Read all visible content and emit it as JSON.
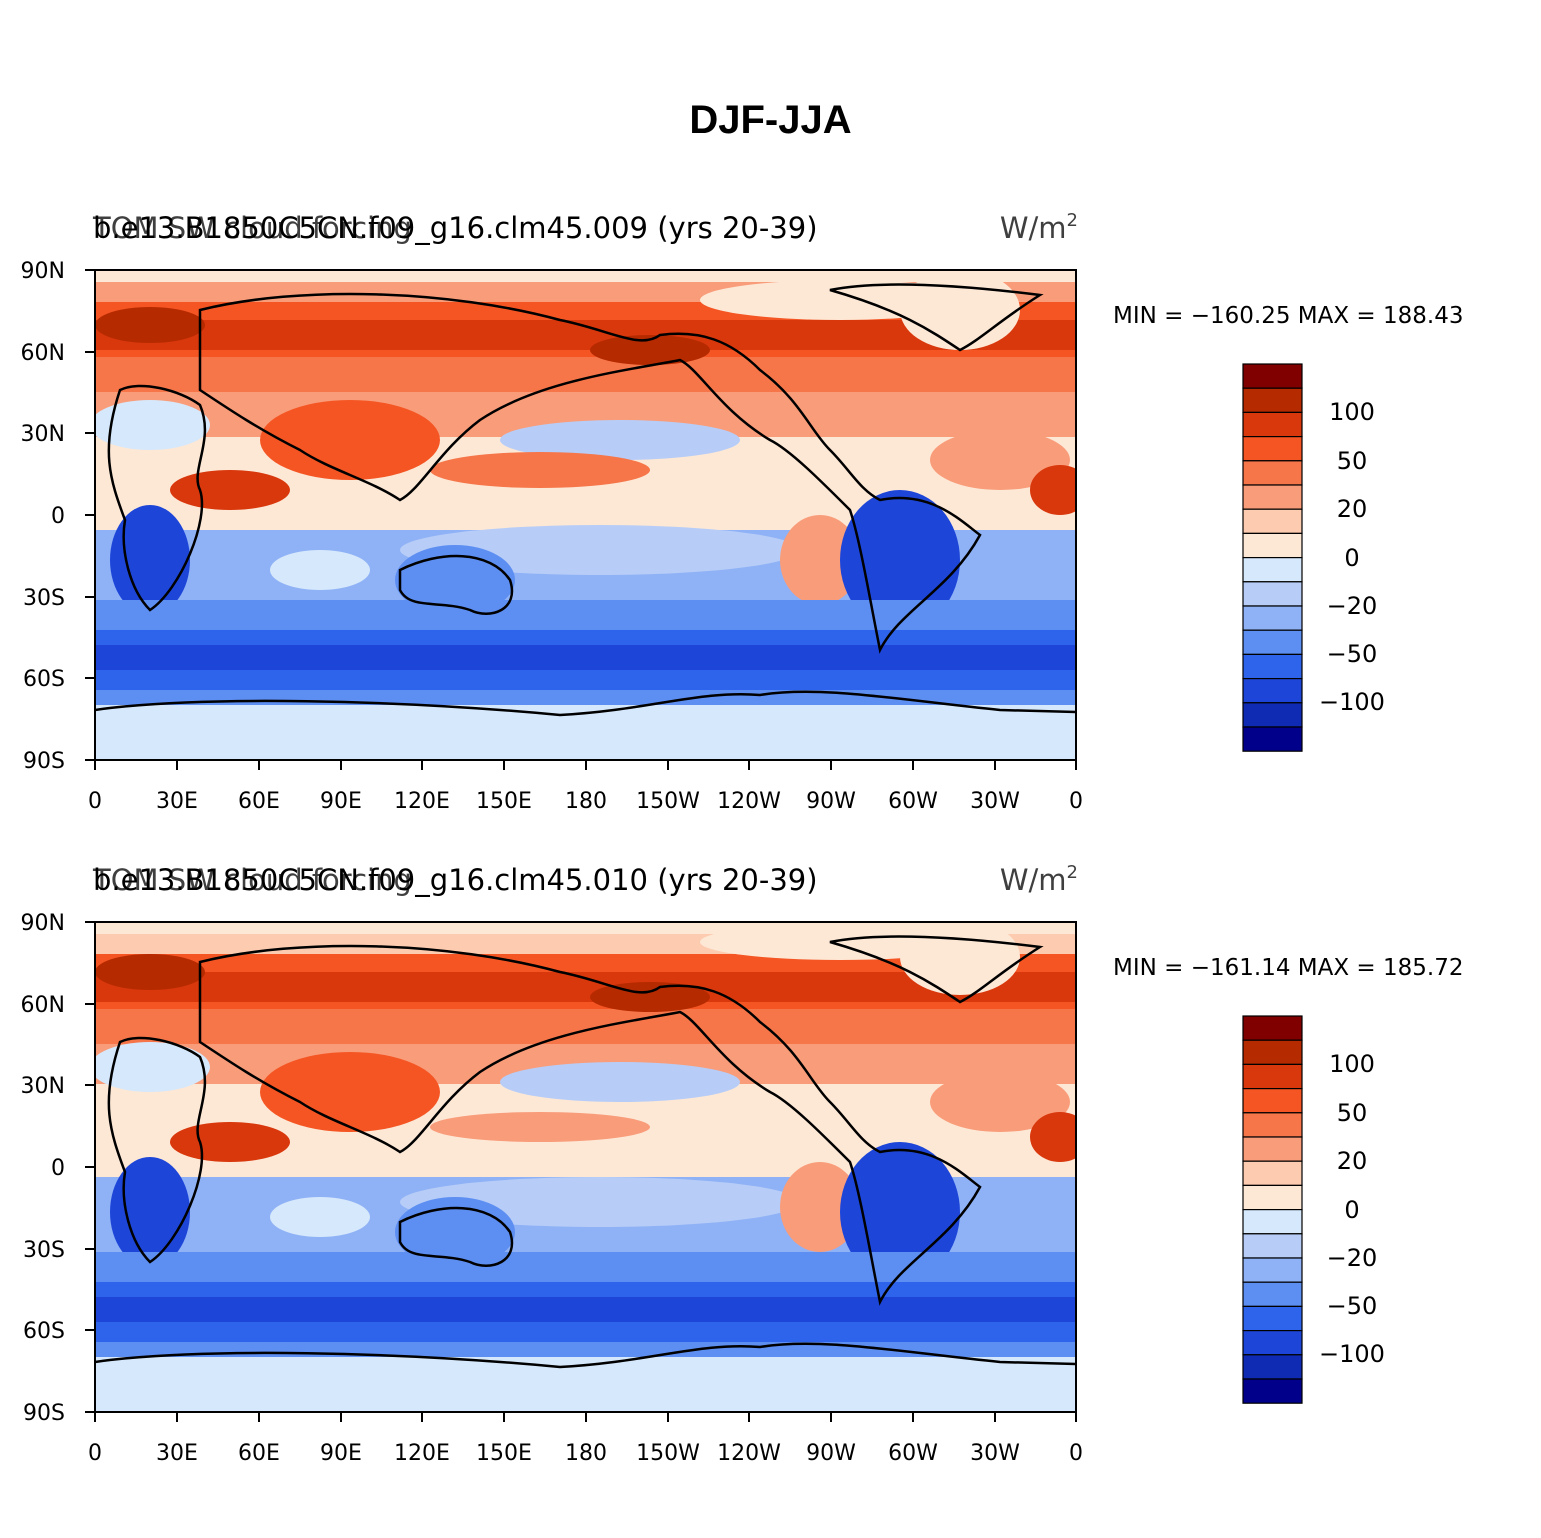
{
  "figure": {
    "title": "DJF-JJA"
  },
  "panels": [
    {
      "case_label": "b.e13.B1850C5CN.f09_g16.clm45.009 (yrs 20-39)",
      "variable_label": "TOM SW cloud forcing",
      "units_label": "W/m",
      "units_superscript": "2",
      "min_max_label": "MIN = −160.25  MAX = 188.43"
    },
    {
      "case_label": "b.e13.B1850C5CN.f09_g16.clm45.010 (yrs 20-39)",
      "variable_label": "TOM SW cloud forcing",
      "units_label": "W/m",
      "units_superscript": "2",
      "min_max_label": "MIN = −161.14  MAX = 185.72"
    }
  ],
  "map": {
    "projection": "cylindrical-equidistant",
    "lon_range": [
      0,
      360
    ],
    "lat_range": [
      -90,
      90
    ],
    "lon_tick_labels": [
      "0",
      "30E",
      "60E",
      "90E",
      "120E",
      "150E",
      "180",
      "150W",
      "120W",
      "90W",
      "60W",
      "30W",
      "0"
    ],
    "lat_tick_labels": [
      "90N",
      "60N",
      "30N",
      "0",
      "30S",
      "60S",
      "90S"
    ]
  },
  "colorbar": {
    "colors_top_to_bottom": [
      "#800000",
      "#b62a00",
      "#d9370c",
      "#f45523",
      "#f6764a",
      "#f99c7a",
      "#fdccb0",
      "#fde8d6",
      "#d6e8fb",
      "#b7cdf7",
      "#8fb1f6",
      "#5d8ef2",
      "#2e63ec",
      "#1d46d9",
      "#0f2ab3",
      "#00008b"
    ],
    "tick_labels": [
      "100",
      "50",
      "20",
      "0",
      "−20",
      "−50",
      "−100"
    ]
  }
}
